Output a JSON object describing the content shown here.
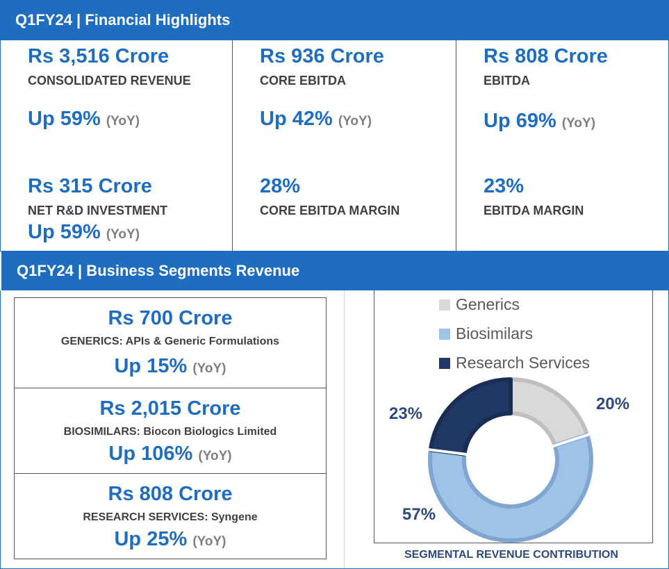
{
  "header": {
    "title": "Q1FY24 | Financial Highlights"
  },
  "financial_highlights": {
    "revenue": {
      "value": "Rs 3,516 Crore",
      "label": "CONSOLIDATED REVENUE",
      "growth": "Up 59%",
      "yoy": "(YoY)"
    },
    "core_ebitda": {
      "value": "Rs 936 Crore",
      "label": "CORE EBITDA",
      "growth": "Up 42%",
      "yoy": "(YoY)"
    },
    "ebitda": {
      "value": "Rs 808 Crore",
      "label": "EBITDA",
      "growth": "Up 69%",
      "yoy": "(YoY)"
    },
    "rnd": {
      "value": "Rs 315 Crore",
      "label": "NET R&D INVESTMENT",
      "growth": "Up 59%",
      "yoy": "(YoY)"
    },
    "core_margin": {
      "value": "28%",
      "label": "CORE EBITDA MARGIN"
    },
    "ebitda_margin": {
      "value": "23%",
      "label": "EBITDA MARGIN"
    }
  },
  "segments_header": {
    "title": "Q1FY24 | Business Segments Revenue"
  },
  "segments": [
    {
      "value": "Rs 700 Crore",
      "label": "GENERICS: APIs & Generic Formulations",
      "growth": "Up 15%",
      "yoy": "(YoY)"
    },
    {
      "value": "Rs 2,015 Crore",
      "label": "BIOSIMILARS: Biocon Biologics Limited",
      "growth": "Up 106%",
      "yoy": "(YoY)"
    },
    {
      "value": "Rs 808 Crore",
      "label": "RESEARCH SERVICES: Syngene",
      "growth": "Up 25%",
      "yoy": "(YoY)"
    }
  ],
  "chart_data": {
    "type": "pie",
    "style": "donut",
    "title": "",
    "caption": "SEGMENTAL REVENUE CONTRIBUTION",
    "categories": [
      "Generics",
      "Biosimilars",
      "Research Services"
    ],
    "values": [
      20,
      57,
      23
    ],
    "value_labels": [
      "20%",
      "57%",
      "23%"
    ],
    "unit": "%",
    "colors": [
      "#d9d9d9",
      "#9dc3e6",
      "#203864"
    ],
    "border_colors": [
      "#bfbfbf",
      "#7ea6d1",
      "#1a2d52"
    ],
    "legend_position": "top"
  }
}
